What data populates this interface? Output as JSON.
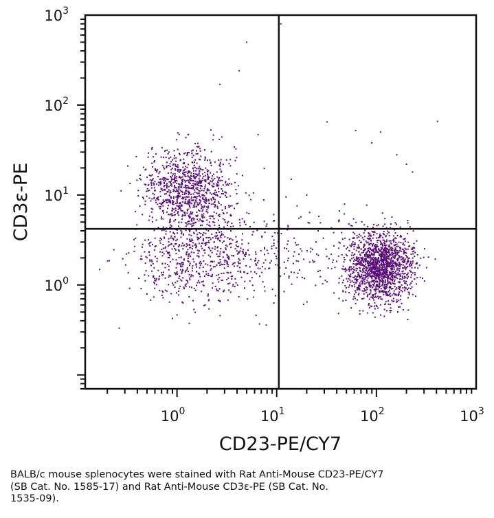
{
  "chart_data": {
    "type": "scatter",
    "xlabel": "CD23-PE/CY7",
    "ylabel": "CD3ε-PE",
    "x_scale": "log",
    "y_scale": "log",
    "xlim": [
      0.12,
      1000
    ],
    "ylim": [
      0.07,
      1000
    ],
    "x_ticks": [
      {
        "value": 1,
        "base": "10",
        "exp": "0"
      },
      {
        "value": 10,
        "base": "10",
        "exp": "1"
      },
      {
        "value": 100,
        "base": "10",
        "exp": "2"
      },
      {
        "value": 1000,
        "base": "10",
        "exp": "3"
      }
    ],
    "y_ticks": [
      {
        "value": 1,
        "base": "10",
        "exp": "0"
      },
      {
        "value": 10,
        "base": "10",
        "exp": "1"
      },
      {
        "value": 100,
        "base": "10",
        "exp": "2"
      },
      {
        "value": 1000,
        "base": "10",
        "exp": "3"
      }
    ],
    "quadrant_gate": {
      "x": 10.5,
      "y": 4.2
    },
    "grid": false,
    "point_color": "#5a0a7a",
    "populations": [
      {
        "center_x": 1.3,
        "center_y": 12,
        "spread_x_decades": 0.22,
        "spread_y_decades": 0.22,
        "count": 900
      },
      {
        "center_x": 1.6,
        "center_y": 2.2,
        "spread_x_decades": 0.3,
        "spread_y_decades": 0.28,
        "count": 650
      },
      {
        "center_x": 110,
        "center_y": 1.6,
        "spread_x_decades": 0.16,
        "spread_y_decades": 0.2,
        "count": 1500
      },
      {
        "center_x": 10,
        "center_y": 2.0,
        "spread_x_decades": 0.55,
        "spread_y_decades": 0.25,
        "count": 250
      }
    ],
    "outliers": [
      {
        "x": 11,
        "y": 800
      },
      {
        "x": 5,
        "y": 500
      },
      {
        "x": 4.2,
        "y": 240
      },
      {
        "x": 2.7,
        "y": 170
      },
      {
        "x": 6.5,
        "y": 47
      },
      {
        "x": 32,
        "y": 65
      },
      {
        "x": 62,
        "y": 52
      },
      {
        "x": 410,
        "y": 66
      },
      {
        "x": 110,
        "y": 50
      },
      {
        "x": 90,
        "y": 38
      },
      {
        "x": 160,
        "y": 28
      },
      {
        "x": 200,
        "y": 22
      },
      {
        "x": 230,
        "y": 18
      },
      {
        "x": 14,
        "y": 15
      },
      {
        "x": 20,
        "y": 10
      }
    ]
  },
  "caption": {
    "line1": "BALB/c mouse splenocytes were stained with Rat Anti-Mouse CD23-PE/CY7",
    "line2": "(SB Cat. No. 1585-17) and Rat Anti-Mouse CD3ε-PE (SB Cat. No.",
    "line3": "1535-09)."
  }
}
